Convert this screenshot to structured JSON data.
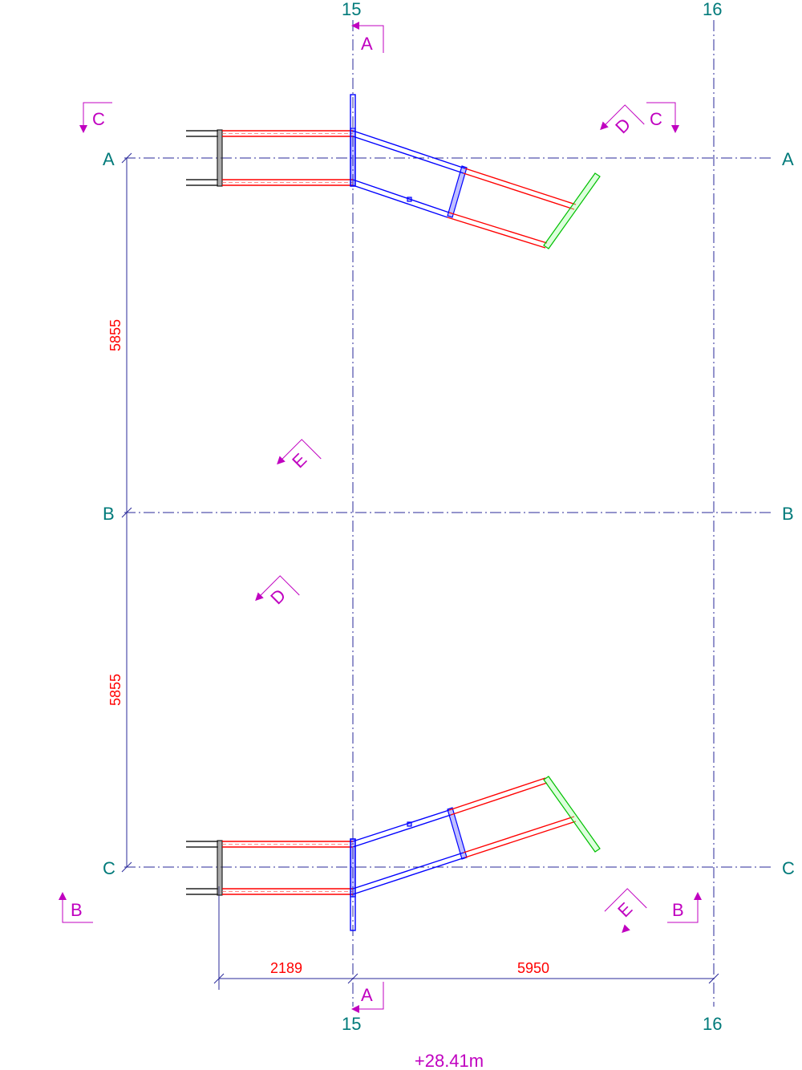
{
  "grid": {
    "rows": [
      {
        "label_left": "A",
        "label_right": "A"
      },
      {
        "label_left": "B",
        "label_right": "B"
      },
      {
        "label_left": "C",
        "label_right": "C"
      }
    ],
    "columns": [
      {
        "label_top": "15",
        "label_bottom": "15"
      },
      {
        "label_top": "16",
        "label_bottom": "16"
      }
    ]
  },
  "dimensions": {
    "vertical_ab": "5855",
    "vertical_bc": "5855",
    "horizontal_left": "2189",
    "horizontal_right": "5950"
  },
  "sections": {
    "a_top": "A",
    "a_bottom": "A",
    "c_left": "C",
    "c_right": "C",
    "b_left": "B",
    "b_right": "B",
    "d_top": "D",
    "d_mid": "D",
    "e_mid": "E",
    "e_bottom": "E"
  },
  "level": "+28.41m"
}
